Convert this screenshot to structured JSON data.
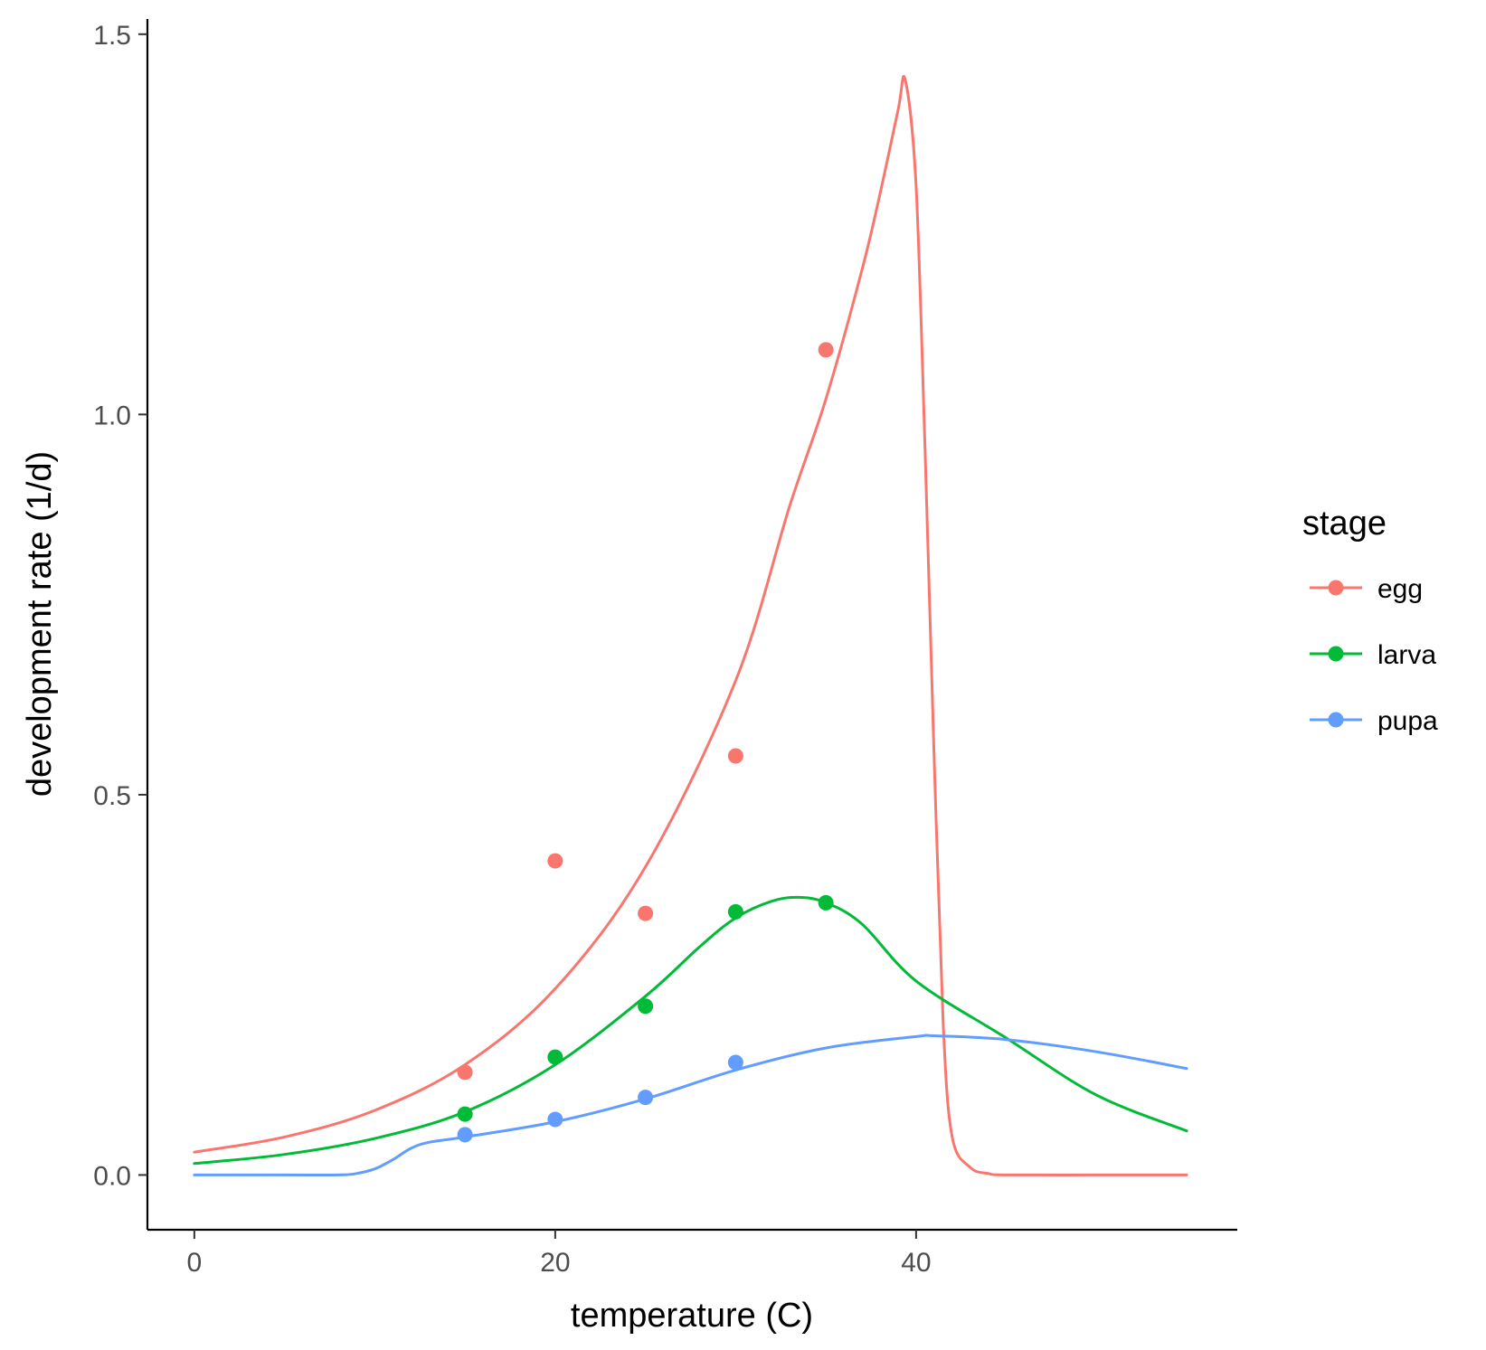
{
  "chart_data": {
    "type": "line",
    "title": "",
    "xlabel": "temperature (C)",
    "ylabel": "development rate (1/d)",
    "xlim": [
      -2.6,
      57.8
    ],
    "ylim": [
      -0.072,
      1.52
    ],
    "x_ticks": [
      0,
      20,
      40
    ],
    "x_tick_labels": [
      "0",
      "20",
      "40"
    ],
    "y_ticks": [
      0.0,
      0.5,
      1.0,
      1.5
    ],
    "y_tick_labels": [
      "0.0",
      "0.5",
      "1.0",
      "1.5"
    ],
    "grid": false,
    "legend": {
      "title": "stage",
      "position": "right"
    },
    "series": [
      {
        "name": "egg",
        "color": "#F8766D",
        "points": {
          "x": [
            15,
            20,
            25,
            30,
            35
          ],
          "y": [
            0.135,
            0.413,
            0.344,
            0.551,
            1.085
          ]
        },
        "curve": {
          "x": [
            0,
            5,
            10,
            15,
            20,
            25,
            30,
            33,
            35,
            37,
            38,
            39,
            39.4,
            40,
            40.5,
            41,
            41.5,
            42,
            43,
            44,
            45,
            50,
            55
          ],
          "y": [
            0.03,
            0.05,
            0.085,
            0.145,
            0.245,
            0.405,
            0.65,
            0.88,
            1.02,
            1.19,
            1.29,
            1.4,
            1.44,
            1.3,
            0.95,
            0.55,
            0.2,
            0.05,
            0.01,
            0.002,
            0.0,
            0.0,
            0.0
          ]
        }
      },
      {
        "name": "larva",
        "color": "#00BA38",
        "points": {
          "x": [
            15,
            20,
            25,
            30,
            35
          ],
          "y": [
            0.08,
            0.155,
            0.222,
            0.346,
            0.358
          ]
        },
        "curve": {
          "x": [
            0,
            5,
            10,
            15,
            20,
            25,
            28,
            30,
            32,
            33.5,
            35,
            37,
            40,
            45,
            50,
            55
          ],
          "y": [
            0.015,
            0.027,
            0.048,
            0.083,
            0.145,
            0.235,
            0.3,
            0.338,
            0.36,
            0.365,
            0.358,
            0.33,
            0.255,
            0.18,
            0.105,
            0.058
          ]
        }
      },
      {
        "name": "pupa",
        "color": "#619CFF",
        "points": {
          "x": [
            15,
            20,
            25,
            30
          ],
          "y": [
            0.053,
            0.073,
            0.102,
            0.148
          ]
        },
        "curve": {
          "x": [
            0,
            5,
            8,
            9,
            10,
            11,
            12,
            13,
            15,
            20,
            25,
            30,
            35,
            40,
            41,
            45,
            50,
            55
          ],
          "y": [
            0.0,
            0.0,
            0.0,
            0.002,
            0.008,
            0.02,
            0.035,
            0.043,
            0.05,
            0.07,
            0.1,
            0.138,
            0.167,
            0.182,
            0.183,
            0.178,
            0.162,
            0.14
          ]
        }
      }
    ]
  }
}
